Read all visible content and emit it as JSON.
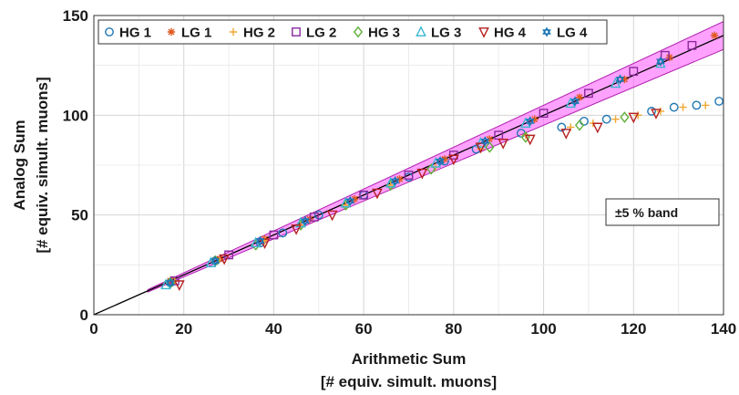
{
  "chart_data": {
    "type": "scatter",
    "xlabel": "Arithmetic Sum",
    "xlabel_unit": "[# equiv. simult. muons]",
    "ylabel": "Analog Sum",
    "ylabel_unit": "[# equiv. simult. muons]",
    "xlim": [
      0,
      140
    ],
    "ylim": [
      0,
      150
    ],
    "x_ticks": [
      0,
      20,
      40,
      60,
      80,
      100,
      120,
      140
    ],
    "y_ticks": [
      0,
      50,
      100,
      150
    ],
    "grid": true,
    "legend_placement": "top, inside plot, single row",
    "annotation": "±5 % band",
    "band": {
      "relative_width": 0.05,
      "x_range": [
        12,
        140
      ],
      "color": "#ff55ff"
    },
    "reference_line": {
      "slope": 1.0,
      "intercept": 0.0,
      "color": "#000000"
    },
    "series": [
      {
        "name": "HG 1",
        "marker": "circle",
        "color": "#1f77b4",
        "points": [
          [
            17,
            16
          ],
          [
            27,
            27
          ],
          [
            37,
            36
          ],
          [
            42,
            41
          ],
          [
            50,
            50
          ],
          [
            60,
            60
          ],
          [
            70,
            69
          ],
          [
            78,
            77
          ],
          [
            85,
            83
          ],
          [
            95,
            91
          ],
          [
            104,
            94
          ],
          [
            109,
            97
          ],
          [
            114,
            98
          ],
          [
            124,
            102
          ],
          [
            129,
            104
          ],
          [
            134,
            105
          ],
          [
            139,
            107
          ]
        ]
      },
      {
        "name": "LG 1",
        "marker": "asterisk",
        "color": "#e05a1f",
        "points": [
          [
            17,
            17
          ],
          [
            28,
            28
          ],
          [
            38,
            38
          ],
          [
            48,
            48
          ],
          [
            58,
            58
          ],
          [
            68,
            68
          ],
          [
            78,
            78
          ],
          [
            88,
            88
          ],
          [
            98,
            98
          ],
          [
            108,
            109
          ],
          [
            118,
            118
          ],
          [
            128,
            129
          ],
          [
            138,
            140
          ]
        ]
      },
      {
        "name": "HG 2",
        "marker": "plus",
        "color": "#f0a830",
        "points": [
          [
            18,
            17
          ],
          [
            28,
            28
          ],
          [
            38,
            37
          ],
          [
            46,
            45
          ],
          [
            56,
            55
          ],
          [
            66,
            65
          ],
          [
            76,
            74
          ],
          [
            86,
            83
          ],
          [
            96,
            90
          ],
          [
            106,
            94
          ],
          [
            111,
            96
          ],
          [
            116,
            98
          ],
          [
            121,
            100
          ],
          [
            126,
            102
          ],
          [
            131,
            104
          ],
          [
            136,
            105
          ]
        ]
      },
      {
        "name": "LG 2",
        "marker": "square",
        "color": "#8b2a9c",
        "points": [
          [
            18,
            17
          ],
          [
            30,
            30
          ],
          [
            40,
            40
          ],
          [
            49,
            49
          ],
          [
            60,
            60
          ],
          [
            70,
            70
          ],
          [
            80,
            80
          ],
          [
            90,
            90
          ],
          [
            100,
            101
          ],
          [
            110,
            111
          ],
          [
            120,
            122
          ],
          [
            127,
            130
          ],
          [
            133,
            135
          ]
        ]
      },
      {
        "name": "HG 3",
        "marker": "diamond",
        "color": "#5fae3c",
        "points": [
          [
            17,
            16
          ],
          [
            27,
            27
          ],
          [
            36,
            35
          ],
          [
            46,
            45
          ],
          [
            56,
            55
          ],
          [
            66,
            65
          ],
          [
            75,
            73
          ],
          [
            88,
            84
          ],
          [
            96,
            89
          ],
          [
            108,
            95
          ],
          [
            118,
            99
          ]
        ]
      },
      {
        "name": "LG 3",
        "marker": "triangle-up",
        "color": "#3ab8d0",
        "points": [
          [
            16,
            15
          ],
          [
            26,
            26
          ],
          [
            36,
            36
          ],
          [
            46,
            46
          ],
          [
            56,
            56
          ],
          [
            66,
            66
          ],
          [
            76,
            76
          ],
          [
            86,
            86
          ],
          [
            96,
            96
          ],
          [
            106,
            106
          ],
          [
            116,
            116
          ],
          [
            126,
            126
          ]
        ]
      },
      {
        "name": "HG 4",
        "marker": "triangle-down",
        "color": "#b52020",
        "points": [
          [
            19,
            15
          ],
          [
            29,
            28
          ],
          [
            38,
            36
          ],
          [
            45,
            43
          ],
          [
            53,
            50
          ],
          [
            63,
            61
          ],
          [
            73,
            71
          ],
          [
            80,
            78
          ],
          [
            86,
            84
          ],
          [
            91,
            86
          ],
          [
            97,
            88
          ],
          [
            105,
            91
          ],
          [
            112,
            94
          ],
          [
            120,
            99
          ],
          [
            125,
            101
          ]
        ]
      },
      {
        "name": "LG 4",
        "marker": "hexagram",
        "color": "#1f77b4",
        "points": [
          [
            17,
            16
          ],
          [
            27,
            27
          ],
          [
            37,
            37
          ],
          [
            47,
            47
          ],
          [
            57,
            57
          ],
          [
            67,
            67
          ],
          [
            77,
            77
          ],
          [
            87,
            87
          ],
          [
            97,
            97
          ],
          [
            107,
            107
          ],
          [
            117,
            118
          ],
          [
            126,
            127
          ]
        ]
      }
    ]
  }
}
